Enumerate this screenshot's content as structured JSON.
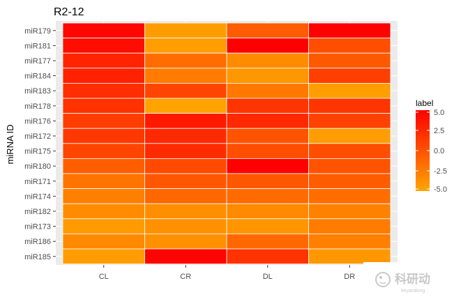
{
  "chart_data": {
    "type": "heatmap",
    "title": "R2-12",
    "xlabel": "",
    "ylabel": "miRNA ID",
    "x_categories": [
      "CL",
      "CR",
      "DL",
      "DR"
    ],
    "y_categories": [
      "miR179",
      "miR181",
      "miR177",
      "miR184",
      "miR183",
      "miR178",
      "miR176",
      "miR172",
      "miR175",
      "miR180",
      "miR171",
      "miR174",
      "miR182",
      "miR173",
      "miR186",
      "miR185"
    ],
    "values": [
      [
        4.6,
        -4.5,
        -0.5,
        4.9
      ],
      [
        4.2,
        -4.6,
        5.0,
        0.3
      ],
      [
        2.8,
        -1.6,
        -3.5,
        -0.4
      ],
      [
        3.0,
        -2.5,
        -4.2,
        1.2
      ],
      [
        2.2,
        0.8,
        -2.3,
        -4.6
      ],
      [
        2.0,
        -4.9,
        1.8,
        1.8
      ],
      [
        1.3,
        3.5,
        2.6,
        1.0
      ],
      [
        1.6,
        2.5,
        0.0,
        -4.5
      ],
      [
        0.8,
        2.4,
        0.3,
        0.3
      ],
      [
        -0.7,
        0.5,
        5.0,
        0.0
      ],
      [
        -2.0,
        -0.3,
        -0.2,
        -0.6
      ],
      [
        -2.7,
        -1.3,
        -1.5,
        -1.6
      ],
      [
        -3.5,
        -3.6,
        -3.3,
        -2.8
      ],
      [
        -4.4,
        -3.8,
        -4.1,
        -2.5
      ],
      [
        -3.3,
        -3.7,
        -1.3,
        -2.7
      ],
      [
        -4.5,
        4.8,
        2.0,
        -4.2
      ]
    ],
    "legend": {
      "title": "label",
      "ticks": [
        "5.0",
        "2.5",
        "0.0",
        "-2.5",
        "-5.0"
      ],
      "tick_values": [
        5.0,
        2.5,
        0.0,
        -2.5,
        -5.0
      ],
      "range": [
        -5,
        5
      ],
      "color_low": "#FFA500",
      "color_high": "#FF0000",
      "placement": "right"
    },
    "grid": true,
    "panel_background": "#EBEBEB",
    "tile_border": "#FFFFFF"
  }
}
